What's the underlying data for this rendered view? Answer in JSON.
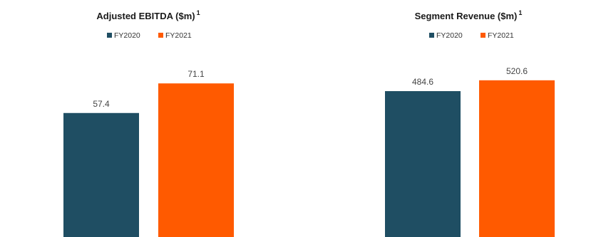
{
  "chart_data": [
    {
      "type": "bar",
      "title": "Adjusted EBITDA ($m)",
      "title_superscript": "1",
      "categories": [
        "FY2020",
        "FY2021"
      ],
      "values": [
        57.4,
        71.1
      ],
      "value_labels": [
        "57.4",
        "71.1"
      ],
      "colors": [
        "#1f4e63",
        "#ff5a00"
      ],
      "legend": [
        "FY2020",
        "FY2021"
      ],
      "legend_placement": "top",
      "ylim": [
        0,
        85
      ],
      "grid": false
    },
    {
      "type": "bar",
      "title": "Segment Revenue ($m)",
      "title_superscript": "1",
      "categories": [
        "FY2020",
        "FY2021"
      ],
      "values": [
        484.6,
        520.6
      ],
      "value_labels": [
        "484.6",
        "520.6"
      ],
      "colors": [
        "#1f4e63",
        "#ff5a00"
      ],
      "legend": [
        "FY2020",
        "FY2021"
      ],
      "legend_placement": "top",
      "ylim": [
        0,
        610
      ],
      "grid": false
    }
  ]
}
